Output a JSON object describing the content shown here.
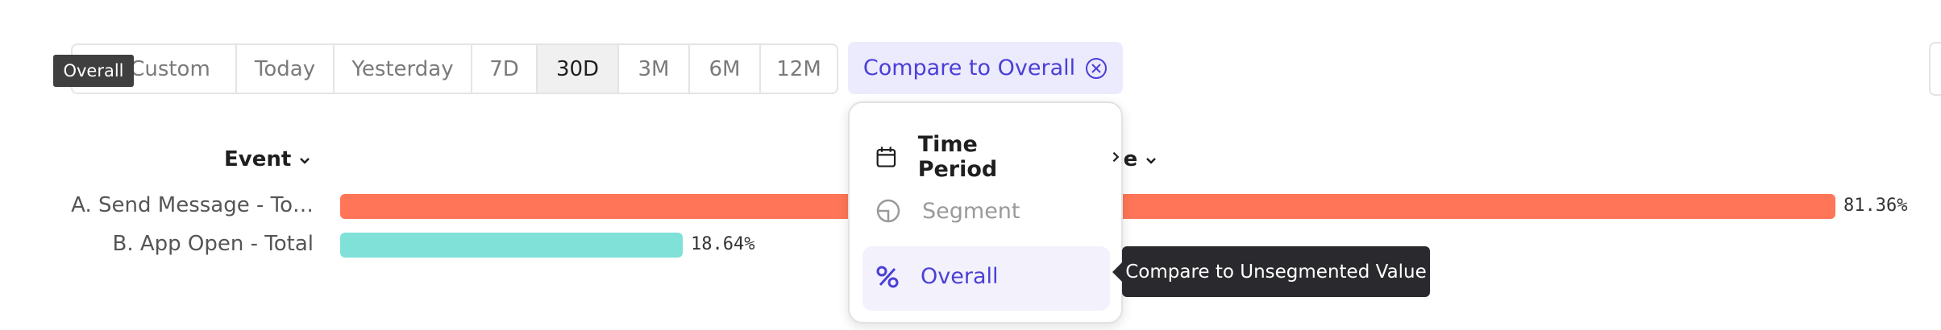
{
  "date_range": {
    "options": [
      "Custom",
      "Today",
      "Yesterday",
      "7D",
      "30D",
      "3M",
      "6M",
      "12M"
    ],
    "selected": "30D"
  },
  "tooltip_overall": "Overall",
  "compare_chip": "Compare to Overall",
  "table": {
    "headers": [
      "Event",
      "Value"
    ]
  },
  "chart": {
    "type": "bar",
    "categories": [
      "A. Send Message - To…",
      "B. App Open - Total"
    ],
    "values": [
      81.36,
      18.64
    ],
    "value_labels": [
      "81.36%",
      "18.64%"
    ],
    "colors": [
      "#ff7557",
      "#80e1d9"
    ],
    "xlim": [
      0,
      100
    ]
  },
  "menu": {
    "items": [
      "Time Period",
      "Segment",
      "Overall"
    ]
  },
  "tooltip": "Compare to Unsegmented Value"
}
